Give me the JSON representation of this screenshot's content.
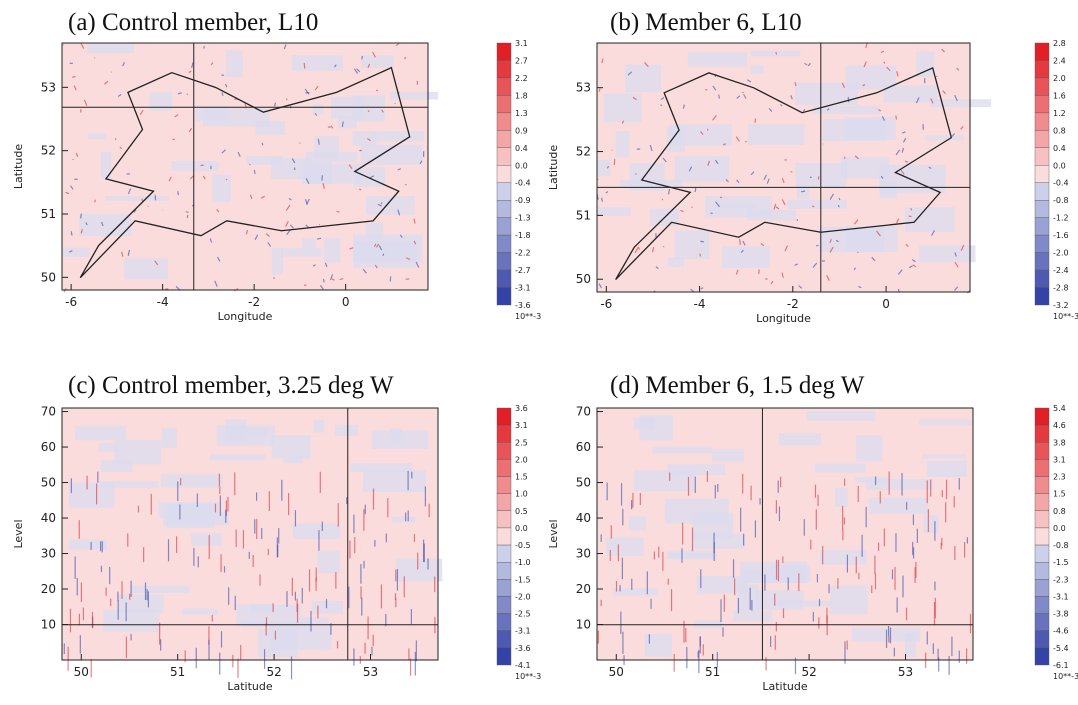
{
  "chart_data": [
    {
      "type": "heatmap",
      "title": "(a) Control member, L10",
      "xlabel": "Longitude",
      "ylabel": "Latitude",
      "xlim": [
        -6.2,
        1.8
      ],
      "xticks": [
        -6,
        -4,
        -2,
        0
      ],
      "ylim": [
        49.8,
        53.7
      ],
      "yticks": [
        50,
        51,
        52,
        53
      ],
      "colorbar": {
        "levels": [
          "3.1",
          "2.7",
          "2.2",
          "1.8",
          "1.3",
          "0.9",
          "0.4",
          "0.0",
          "-0.4",
          "-0.9",
          "-1.3",
          "-1.8",
          "-2.2",
          "-2.7",
          "-3.1",
          "-3.6"
        ],
        "unit": "10**-3"
      }
    },
    {
      "type": "heatmap",
      "title": "(b) Member 6, L10",
      "xlabel": "Longitude",
      "ylabel": "Latitude",
      "xlim": [
        -6.2,
        1.8
      ],
      "xticks": [
        -6,
        -4,
        -2,
        0
      ],
      "ylim": [
        49.8,
        53.7
      ],
      "yticks": [
        50,
        51,
        52,
        53
      ],
      "colorbar": {
        "levels": [
          "2.8",
          "2.4",
          "2.0",
          "1.6",
          "1.2",
          "0.8",
          "0.4",
          "0.0",
          "-0.4",
          "-0.8",
          "-1.2",
          "-1.6",
          "-2.0",
          "-2.4",
          "-2.8",
          "-3.2"
        ],
        "unit": "10**-3"
      }
    },
    {
      "type": "heatmap",
      "title": "(c) Control member, 3.25 deg W",
      "xlabel": "Latitude",
      "ylabel": "Level",
      "xlim": [
        49.8,
        53.7
      ],
      "xticks": [
        50,
        51,
        52,
        53
      ],
      "ylim": [
        0,
        71
      ],
      "yticks": [
        10,
        20,
        30,
        40,
        50,
        60,
        70
      ],
      "colorbar": {
        "levels": [
          "3.6",
          "3.1",
          "2.5",
          "2.0",
          "1.5",
          "1.0",
          "0.5",
          "0.0",
          "-0.5",
          "-1.0",
          "-1.5",
          "-2.0",
          "-2.5",
          "-3.1",
          "-3.6",
          "-4.1"
        ],
        "unit": "10**-3"
      }
    },
    {
      "type": "heatmap",
      "title": "(d) Member 6, 1.5 deg W",
      "xlabel": "Latitude",
      "ylabel": "Level",
      "xlim": [
        49.8,
        53.7
      ],
      "xticks": [
        50,
        51,
        52,
        53
      ],
      "ylim": [
        0,
        71
      ],
      "yticks": [
        10,
        20,
        30,
        40,
        50,
        60,
        70
      ],
      "colorbar": {
        "levels": [
          "5.4",
          "4.6",
          "3.8",
          "3.1",
          "2.3",
          "1.5",
          "0.8",
          "0.0",
          "-0.8",
          "-1.5",
          "-2.3",
          "-3.1",
          "-3.8",
          "-4.6",
          "-5.4",
          "-6.1"
        ],
        "unit": "10**-3"
      }
    }
  ]
}
